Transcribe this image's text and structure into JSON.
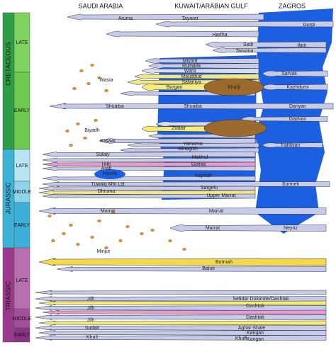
{
  "headers": [
    "SAUDI ARABIA",
    "KUWAIT/ARABIAN GULF",
    "ZAGROS"
  ],
  "periods": [
    {
      "name": "CRETACEOUS",
      "epochs": [
        "LATE",
        "EARLY"
      ]
    },
    {
      "name": "JURASSIC",
      "epochs": [
        "LATE",
        "MIDDLE",
        "EARLY"
      ]
    },
    {
      "name": "TRIASSIC",
      "epochs": [
        "LATE",
        "MIDDLE",
        "EARLY"
      ]
    }
  ],
  "formations": [
    "Aruma",
    "Tayarat",
    "Gurpi",
    "Hartha",
    "Sadi",
    "Ilam",
    "Tanuma",
    "Mishrif",
    "Rumaila",
    "Wara",
    "Sarvak",
    "Mauddud",
    "Wasia",
    "Safaniya",
    "Burgan",
    "Khafji",
    "Kazhdumi",
    "Shuaiba",
    "Shuaiba",
    "Dariyan",
    "Gadvan",
    "Biyadh",
    "Zubair",
    "Ratawi",
    "Yamama",
    "Minagish",
    "Fahliyan",
    "Sulaiy",
    "Makhul",
    "Gotnia",
    "Hith",
    "Arab",
    "Hanifa",
    "Najmah",
    "Tuwaiq Mtn Lst",
    "Sargelu",
    "Surmeh",
    "Dhruma",
    "Upper Marrat",
    "Marrat",
    "Marrat",
    "Marrat",
    "Neyriz",
    "Minjur",
    "Butmah",
    "Baluti",
    "Jilh",
    "Sefidar Dolomite/Dashtak",
    "Jilh",
    "Dashtak",
    "Jilh",
    "Dashtak",
    "Sudair",
    "Aghar Shale",
    "Kangan",
    "Khuff",
    "Khuff",
    "Kangan"
  ]
}
